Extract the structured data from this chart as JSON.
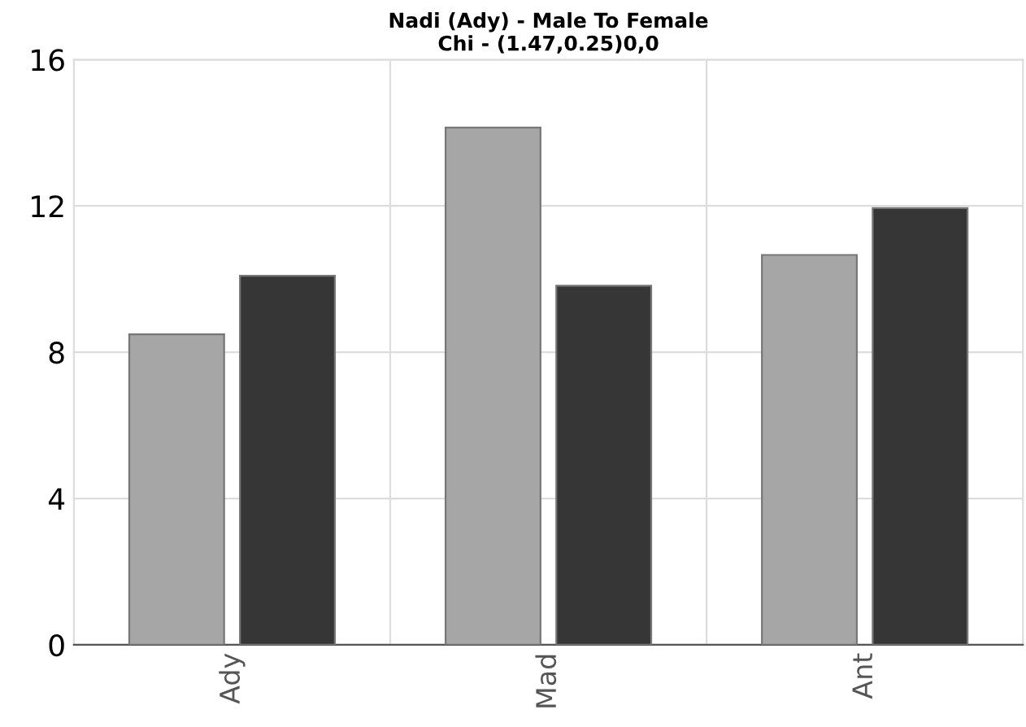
{
  "chart_data": {
    "type": "bar",
    "title": "Nadi (Ady) - Male To Female\nChi - (1.47,0.25)0,0",
    "categories": [
      "Ady",
      "Mad",
      "Ant"
    ],
    "series": [
      {
        "color": "#a6a6a6",
        "values": [
          8.49,
          14.14,
          10.66
        ]
      },
      {
        "color": "#363636",
        "values": [
          10.09,
          9.82,
          11.94
        ]
      }
    ],
    "ylim": [
      0,
      16
    ],
    "yticks": [
      0,
      4,
      8,
      12,
      16
    ],
    "grid": true
  }
}
